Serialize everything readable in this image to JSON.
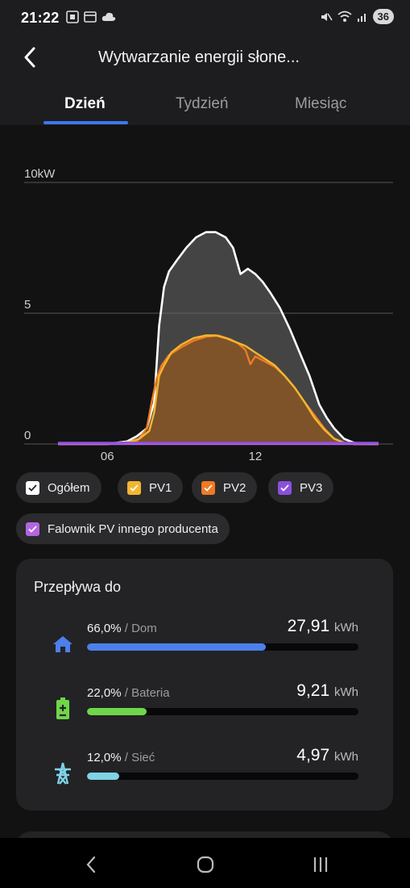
{
  "status": {
    "time": "21:22",
    "battery": "36"
  },
  "header": {
    "title": "Wytwarzanie energii słone...",
    "tabs": [
      "Dzień",
      "Tydzień",
      "Miesiąc"
    ],
    "active_tab": 0
  },
  "chart_data": {
    "type": "area",
    "ylim": [
      0,
      10
    ],
    "y_ticks": [
      "0",
      "5",
      "10kW"
    ],
    "x_ticks": [
      "06",
      "12"
    ],
    "xlim": [
      4,
      17
    ],
    "grid": true,
    "series": [
      {
        "name": "Ogółem",
        "color": "#ffffff",
        "x": [
          4.0,
          6.0,
          6.8,
          7.2,
          7.6,
          7.9,
          8.1,
          8.3,
          8.5,
          8.8,
          9.2,
          9.6,
          10.0,
          10.4,
          10.8,
          11.1,
          11.4,
          11.7,
          12.0,
          12.3,
          12.6,
          13.0,
          13.4,
          13.8,
          14.2,
          14.6,
          14.9,
          15.2,
          15.6,
          16.0,
          16.5,
          17.0
        ],
        "values": [
          0,
          0,
          0.1,
          0.3,
          0.6,
          1.6,
          4.5,
          6.0,
          6.6,
          7.0,
          7.5,
          7.9,
          8.1,
          8.1,
          7.9,
          7.5,
          6.5,
          6.7,
          6.5,
          6.2,
          5.8,
          5.2,
          4.4,
          3.5,
          2.6,
          1.5,
          1.0,
          0.6,
          0.2,
          0.05,
          0,
          0
        ]
      },
      {
        "name": "PV1",
        "color": "#f4b630",
        "x": [
          4.0,
          6.0,
          6.8,
          7.3,
          7.7,
          7.9,
          8.1,
          8.3,
          8.6,
          9.0,
          9.5,
          10.0,
          10.4,
          10.8,
          11.2,
          11.6,
          12.0,
          12.4,
          12.8,
          13.2,
          13.6,
          14.0,
          14.4,
          14.8,
          15.2,
          15.6,
          16.0,
          17.0
        ],
        "values": [
          0,
          0,
          0.05,
          0.2,
          0.5,
          1.2,
          2.6,
          3.0,
          3.5,
          3.8,
          4.05,
          4.15,
          4.15,
          4.05,
          3.9,
          3.75,
          3.5,
          3.25,
          3.0,
          2.6,
          2.15,
          1.6,
          1.0,
          0.55,
          0.2,
          0.05,
          0,
          0
        ]
      },
      {
        "name": "PV2",
        "color": "#f07a23",
        "x": [
          4.0,
          6.0,
          7.2,
          7.6,
          7.8,
          8.0,
          8.2,
          8.5,
          9.0,
          9.5,
          10.0,
          10.5,
          11.0,
          11.3,
          11.6,
          11.8,
          12.0,
          12.3,
          12.8,
          13.2,
          13.6,
          14.0,
          14.4,
          14.8,
          15.2,
          15.6,
          16.0,
          17.0
        ],
        "values": [
          0,
          0,
          0.1,
          0.6,
          1.6,
          2.5,
          3.0,
          3.4,
          3.7,
          3.95,
          4.1,
          4.15,
          4.0,
          3.85,
          3.6,
          3.05,
          3.35,
          3.2,
          2.95,
          2.6,
          2.15,
          1.6,
          1.1,
          0.6,
          0.2,
          0.05,
          0,
          0
        ]
      },
      {
        "name": "PV3",
        "color": "#8b4fe0",
        "x": [
          4.0,
          17.0
        ],
        "values": [
          0.05,
          0.05
        ]
      },
      {
        "name": "Falownik PV innego producenta",
        "color": "#b365e0",
        "x": [
          4.0,
          17.0
        ],
        "values": [
          0,
          0
        ]
      }
    ]
  },
  "legend": [
    {
      "label": "Ogółem",
      "color": "#ffffff"
    },
    {
      "label": "PV1",
      "color": "#f4b630"
    },
    {
      "label": "PV2",
      "color": "#f07a23"
    },
    {
      "label": "PV3",
      "color": "#8b4fe0"
    },
    {
      "label": "Falownik PV innego producenta",
      "color": "#b365e0"
    }
  ],
  "flows": {
    "title": "Przepływa do",
    "items": [
      {
        "pct": "66,0%",
        "label": "Dom",
        "value": "27,91",
        "unit": "kWh",
        "fraction": 0.66,
        "color": "#4d7fec",
        "icon": "home-icon"
      },
      {
        "pct": "22,0%",
        "label": "Bateria",
        "value": "9,21",
        "unit": "kWh",
        "fraction": 0.22,
        "color": "#6fd64a",
        "icon": "battery-icon"
      },
      {
        "pct": "12,0%",
        "label": "Sieć",
        "value": "4,97",
        "unit": "kWh",
        "fraction": 0.12,
        "color": "#7fd3e6",
        "icon": "grid-tower-icon"
      }
    ]
  }
}
